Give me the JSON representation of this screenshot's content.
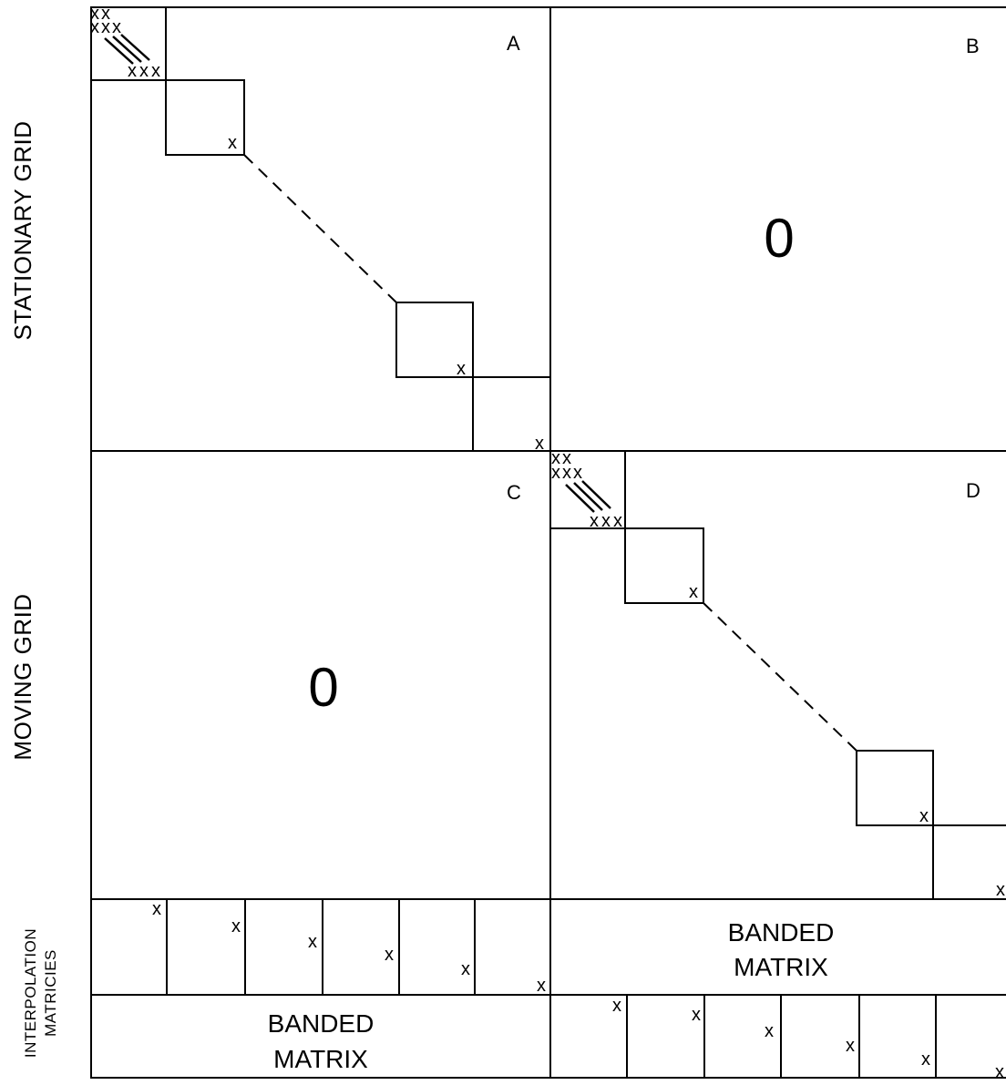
{
  "row_labels": {
    "stationary": "STATIONARY GRID",
    "moving": "MOVING GRID",
    "interpolation_line1": "INTERPOLATION",
    "interpolation_line2": "MATRICIES"
  },
  "panels": {
    "A": "A",
    "B": "B",
    "C": "C",
    "D": "D"
  },
  "zero_block": "0",
  "entry_mark": "x",
  "banded_line1": "BANDED",
  "banded_line2": "MATRIX"
}
